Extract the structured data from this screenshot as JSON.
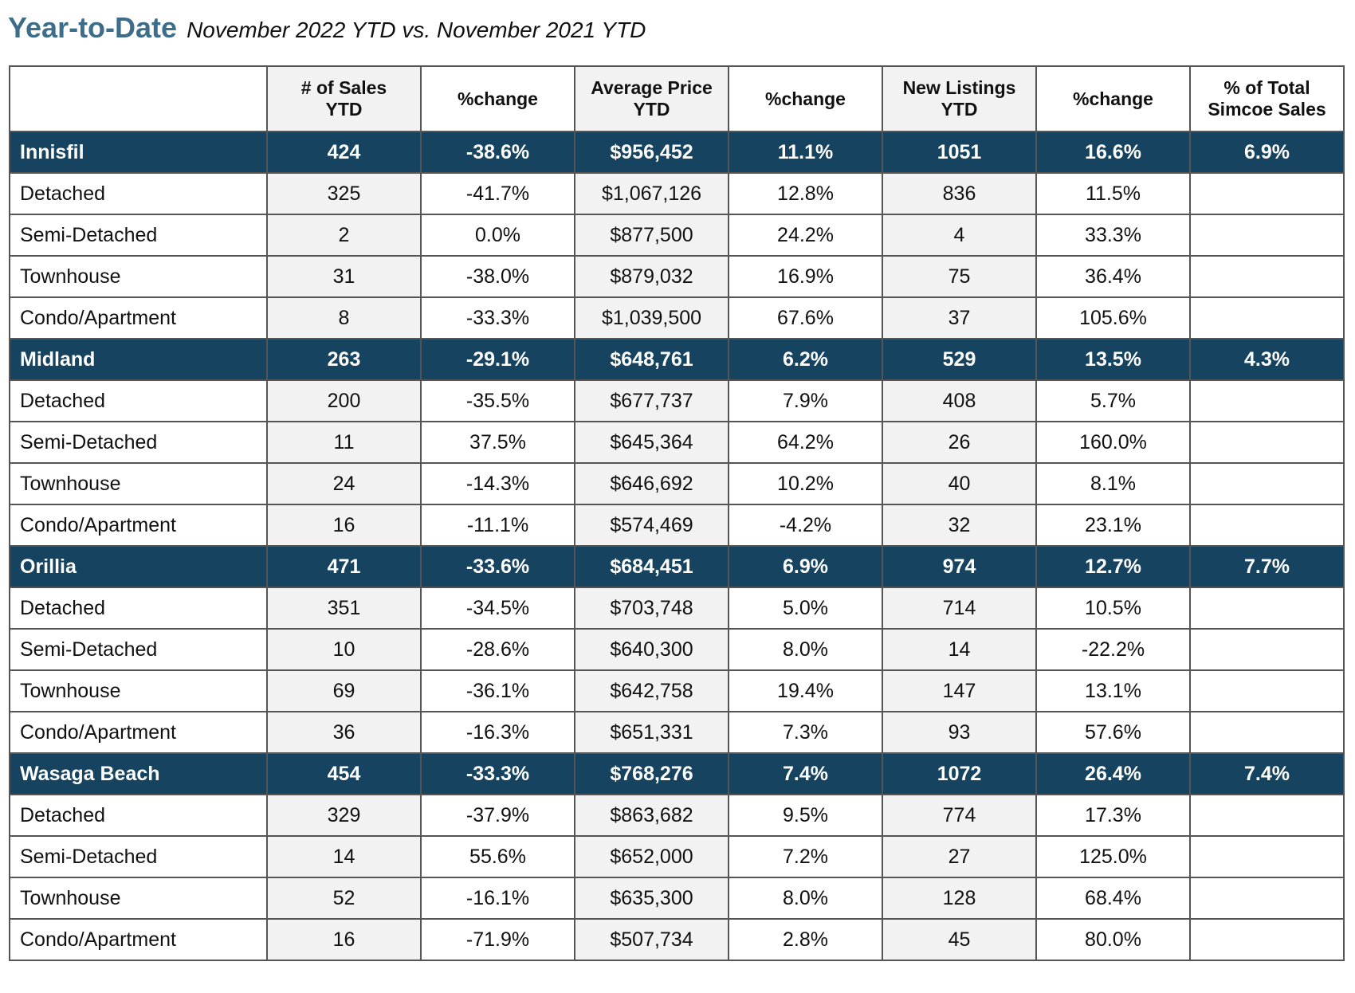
{
  "heading": {
    "title": "Year-to-Date",
    "subtitle": "November 2022 YTD vs. November 2021 YTD"
  },
  "table": {
    "columns": [
      [
        "",
        ""
      ],
      [
        "# of Sales",
        "YTD"
      ],
      [
        "%change",
        ""
      ],
      [
        "Average Price",
        "YTD"
      ],
      [
        "%change",
        ""
      ],
      [
        "New Listings",
        "YTD"
      ],
      [
        "%change",
        ""
      ],
      [
        "% of Total",
        "Simcoe Sales"
      ]
    ],
    "rows": [
      {
        "type": "region",
        "cells": [
          "Innisfil",
          "424",
          "-38.6%",
          "$956,452",
          "11.1%",
          "1051",
          "16.6%",
          "6.9%"
        ]
      },
      {
        "type": "sub",
        "cells": [
          "Detached",
          "325",
          "-41.7%",
          "$1,067,126",
          "12.8%",
          "836",
          "11.5%",
          ""
        ]
      },
      {
        "type": "sub",
        "cells": [
          "Semi-Detached",
          "2",
          "0.0%",
          "$877,500",
          "24.2%",
          "4",
          "33.3%",
          ""
        ]
      },
      {
        "type": "sub",
        "cells": [
          "Townhouse",
          "31",
          "-38.0%",
          "$879,032",
          "16.9%",
          "75",
          "36.4%",
          ""
        ]
      },
      {
        "type": "sub",
        "cells": [
          "Condo/Apartment",
          "8",
          "-33.3%",
          "$1,039,500",
          "67.6%",
          "37",
          "105.6%",
          ""
        ]
      },
      {
        "type": "region",
        "cells": [
          "Midland",
          "263",
          "-29.1%",
          "$648,761",
          "6.2%",
          "529",
          "13.5%",
          "4.3%"
        ]
      },
      {
        "type": "sub",
        "cells": [
          "Detached",
          "200",
          "-35.5%",
          "$677,737",
          "7.9%",
          "408",
          "5.7%",
          ""
        ]
      },
      {
        "type": "sub",
        "cells": [
          "Semi-Detached",
          "11",
          "37.5%",
          "$645,364",
          "64.2%",
          "26",
          "160.0%",
          ""
        ]
      },
      {
        "type": "sub",
        "cells": [
          "Townhouse",
          "24",
          "-14.3%",
          "$646,692",
          "10.2%",
          "40",
          "8.1%",
          ""
        ]
      },
      {
        "type": "sub",
        "cells": [
          "Condo/Apartment",
          "16",
          "-11.1%",
          "$574,469",
          "-4.2%",
          "32",
          "23.1%",
          ""
        ]
      },
      {
        "type": "region",
        "cells": [
          "Orillia",
          "471",
          "-33.6%",
          "$684,451",
          "6.9%",
          "974",
          "12.7%",
          "7.7%"
        ]
      },
      {
        "type": "sub",
        "cells": [
          "Detached",
          "351",
          "-34.5%",
          "$703,748",
          "5.0%",
          "714",
          "10.5%",
          ""
        ]
      },
      {
        "type": "sub",
        "cells": [
          "Semi-Detached",
          "10",
          "-28.6%",
          "$640,300",
          "8.0%",
          "14",
          "-22.2%",
          ""
        ]
      },
      {
        "type": "sub",
        "cells": [
          "Townhouse",
          "69",
          "-36.1%",
          "$642,758",
          "19.4%",
          "147",
          "13.1%",
          ""
        ]
      },
      {
        "type": "sub",
        "cells": [
          "Condo/Apartment",
          "36",
          "-16.3%",
          "$651,331",
          "7.3%",
          "93",
          "57.6%",
          ""
        ]
      },
      {
        "type": "region",
        "cells": [
          "Wasaga Beach",
          "454",
          "-33.3%",
          "$768,276",
          "7.4%",
          "1072",
          "26.4%",
          "7.4%"
        ]
      },
      {
        "type": "sub",
        "cells": [
          "Detached",
          "329",
          "-37.9%",
          "$863,682",
          "9.5%",
          "774",
          "17.3%",
          ""
        ]
      },
      {
        "type": "sub",
        "cells": [
          "Semi-Detached",
          "14",
          "55.6%",
          "$652,000",
          "7.2%",
          "27",
          "125.0%",
          ""
        ]
      },
      {
        "type": "sub",
        "cells": [
          "Townhouse",
          "52",
          "-16.1%",
          "$635,300",
          "8.0%",
          "128",
          "68.4%",
          ""
        ]
      },
      {
        "type": "sub",
        "cells": [
          "Condo/Apartment",
          "16",
          "-71.9%",
          "$507,734",
          "2.8%",
          "45",
          "80.0%",
          ""
        ]
      }
    ]
  }
}
